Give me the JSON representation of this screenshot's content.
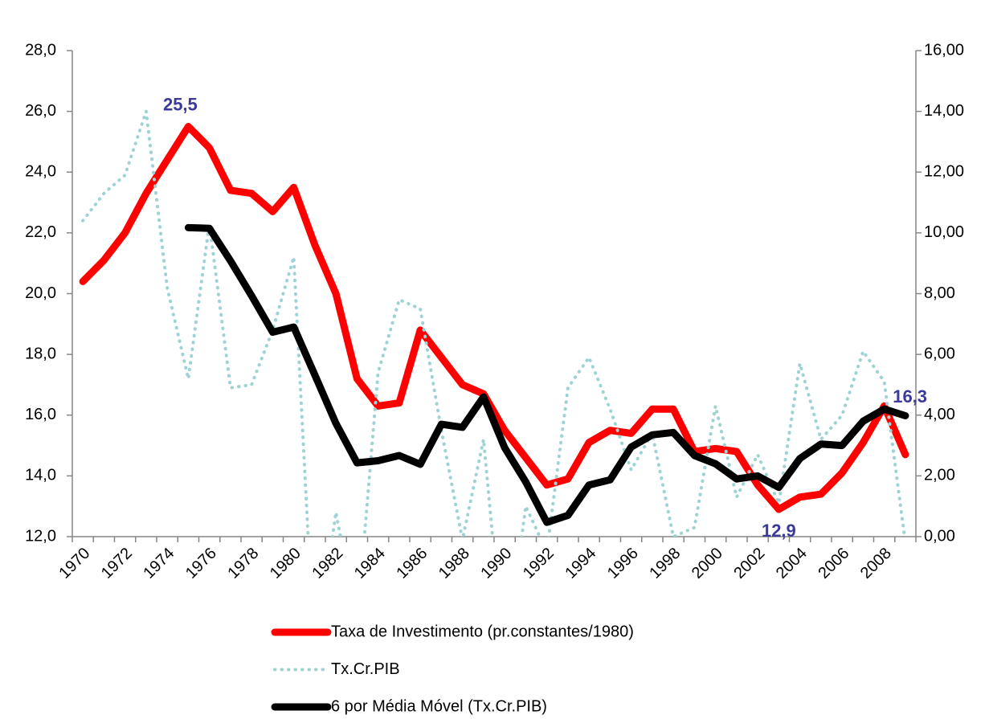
{
  "chart_data": {
    "type": "line",
    "categories": [
      "1970",
      null,
      "1972",
      null,
      "1974",
      null,
      "1976",
      null,
      "1978",
      null,
      "1980",
      null,
      "1982",
      null,
      "1984",
      null,
      "1986",
      null,
      "1988",
      null,
      "1990",
      null,
      "1992",
      null,
      "1994",
      null,
      "1996",
      null,
      "1998",
      null,
      "2000",
      null,
      "2002",
      null,
      "2004",
      null,
      "2006",
      null,
      "2008",
      null
    ],
    "series": [
      {
        "name": "Taxa de Investimento (pr.constantes/1980)",
        "color": "#ff0000",
        "style": "solid",
        "values": [
          20.4,
          21.1,
          22.0,
          23.3,
          24.4,
          25.5,
          24.8,
          23.4,
          23.3,
          22.7,
          23.5,
          21.6,
          20.0,
          17.2,
          16.3,
          16.4,
          18.8,
          17.9,
          17.0,
          16.7,
          15.5,
          14.6,
          13.7,
          13.9,
          15.1,
          15.5,
          15.4,
          16.2,
          16.2,
          14.8,
          14.9,
          14.8,
          13.7,
          12.9,
          13.3,
          13.4,
          14.1,
          15.1,
          16.3,
          14.7
        ],
        "value_labels": [
          null,
          null,
          null,
          null,
          null,
          "25,5",
          null,
          null,
          null,
          null,
          null,
          null,
          null,
          null,
          null,
          null,
          null,
          null,
          null,
          null,
          null,
          null,
          null,
          null,
          null,
          null,
          null,
          null,
          null,
          null,
          null,
          null,
          null,
          "12,9",
          null,
          null,
          null,
          null,
          "16,3",
          null
        ]
      },
      {
        "name": "Tx.Cr.PIB",
        "color": "#9fd3d3",
        "style": "dotted",
        "axis": "y2",
        "values": [
          10.4,
          11.3,
          11.9,
          14.0,
          8.2,
          5.2,
          10.3,
          4.9,
          5.0,
          6.8,
          9.2,
          -4.3,
          0.8,
          -2.9,
          5.4,
          7.8,
          7.5,
          3.5,
          -0.1,
          3.2,
          -4.3,
          1.0,
          -0.5,
          4.9,
          5.9,
          4.2,
          2.2,
          3.4,
          0.0,
          0.3,
          4.3,
          1.3,
          2.7,
          1.1,
          5.7,
          3.2,
          4.0,
          6.1,
          5.1,
          -0.2
        ]
      },
      {
        "name": "6 por Média Móvel (Tx.Cr.PIB)",
        "color": "#000000",
        "style": "solid",
        "axis": "y2",
        "values": [
          null,
          null,
          null,
          null,
          null,
          10.17,
          10.15,
          9.08,
          7.93,
          6.73,
          6.9,
          5.32,
          3.73,
          2.43,
          2.5,
          2.67,
          2.38,
          3.7,
          3.6,
          4.6,
          2.93,
          1.8,
          0.47,
          0.7,
          1.7,
          1.87,
          2.95,
          3.35,
          3.43,
          2.67,
          2.4,
          1.9,
          2.0,
          1.62,
          2.57,
          3.05,
          3.0,
          3.8,
          4.2,
          3.98
        ]
      }
    ],
    "ylim": [
      12,
      28
    ],
    "yticks": [
      {
        "value": 12,
        "label": "12,0"
      },
      {
        "value": 14,
        "label": "14,0"
      },
      {
        "value": 16,
        "label": "16,0"
      },
      {
        "value": 18,
        "label": "18,0"
      },
      {
        "value": 20,
        "label": "20,0"
      },
      {
        "value": 22,
        "label": "22,0"
      },
      {
        "value": 24,
        "label": "24,0"
      },
      {
        "value": 26,
        "label": "26,0"
      },
      {
        "value": 28,
        "label": "28,0"
      }
    ],
    "y2lim": [
      0,
      16
    ],
    "y2ticks": [
      {
        "value": 0,
        "label": "0,00"
      },
      {
        "value": 2,
        "label": "2,00"
      },
      {
        "value": 4,
        "label": "4,00"
      },
      {
        "value": 6,
        "label": "6,00"
      },
      {
        "value": 8,
        "label": "8,00"
      },
      {
        "value": 10,
        "label": "10,00"
      },
      {
        "value": 12,
        "label": "12,00"
      },
      {
        "value": 14,
        "label": "14,00"
      },
      {
        "value": 16,
        "label": "16,00"
      }
    ],
    "grid": false,
    "legend": "bottom"
  }
}
